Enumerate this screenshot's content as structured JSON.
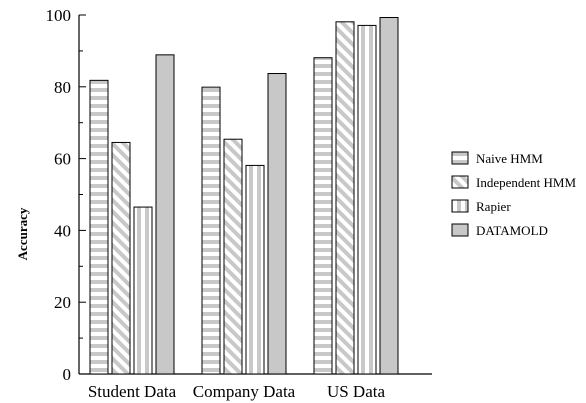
{
  "chart_data": {
    "type": "bar",
    "title": "",
    "xlabel": "",
    "ylabel": "Accuracy",
    "ylim": [
      0,
      100
    ],
    "yticks": [
      0,
      20,
      40,
      60,
      80,
      100
    ],
    "grid": false,
    "legend_position": "right",
    "categories": [
      "Student Data",
      "Company Data",
      "US Data"
    ],
    "series": [
      {
        "name": "Naive HMM",
        "pattern": "horizontal-stripes",
        "values": [
          81.8,
          79.9,
          88.1
        ]
      },
      {
        "name": "Independent HMM",
        "pattern": "diagonal-stripes",
        "values": [
          64.5,
          65.4,
          98.1
        ]
      },
      {
        "name": "Rapier",
        "pattern": "vertical-stripes",
        "values": [
          46.5,
          58.1,
          97.1
        ]
      },
      {
        "name": "DATAMOLD",
        "pattern": "solid",
        "values": [
          88.9,
          83.7,
          99.3
        ]
      }
    ],
    "colors": {
      "bar_fill": "#c8c8c8",
      "stripe": "#ffffff",
      "outline": "#000000"
    }
  }
}
